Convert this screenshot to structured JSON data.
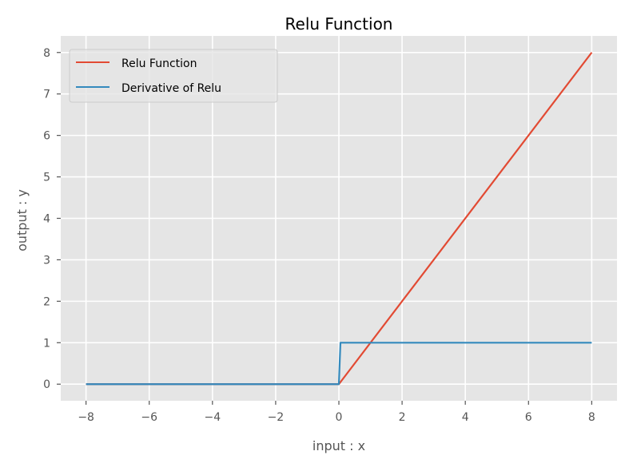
{
  "chart_data": {
    "type": "line",
    "title": "Relu Function",
    "xlabel": "input : x",
    "ylabel": "output : y",
    "xlim": [
      -8.8,
      8.8
    ],
    "ylim": [
      -0.4,
      8.4
    ],
    "xticks": [
      -8,
      -6,
      -4,
      -2,
      0,
      2,
      4,
      6,
      8
    ],
    "xtick_labels": [
      "−8",
      "−6",
      "−4",
      "−2",
      "0",
      "2",
      "4",
      "6",
      "8"
    ],
    "yticks": [
      0,
      1,
      2,
      3,
      4,
      5,
      6,
      7,
      8
    ],
    "ytick_labels": [
      "0",
      "1",
      "2",
      "3",
      "4",
      "5",
      "6",
      "7",
      "8"
    ],
    "grid": true,
    "legend_position": "top-left",
    "series": [
      {
        "name": "Relu Function",
        "color": "#E24A33",
        "x": [
          -8,
          0,
          8
        ],
        "y": [
          0,
          0,
          8
        ]
      },
      {
        "name": "Derivative of Relu",
        "color": "#348ABD",
        "x": [
          -8,
          0,
          0.05,
          8
        ],
        "y": [
          0,
          0,
          1,
          1
        ]
      }
    ]
  }
}
